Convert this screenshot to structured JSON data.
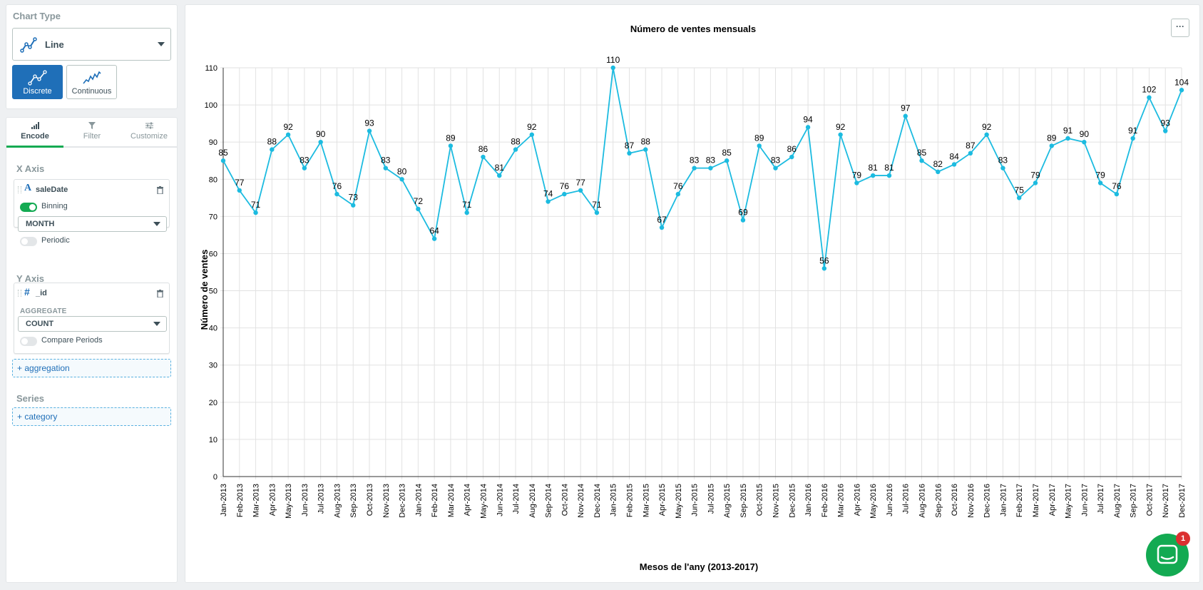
{
  "sidebar": {
    "chart_type": {
      "section_label": "Chart Type",
      "selected": "Line",
      "modes": [
        {
          "label": "Discrete",
          "active": true
        },
        {
          "label": "Continuous",
          "active": false
        }
      ]
    },
    "tabs": [
      {
        "label": "Encode",
        "active": true
      },
      {
        "label": "Filter",
        "active": false
      },
      {
        "label": "Customize",
        "active": false
      }
    ],
    "x_axis": {
      "label": "X Axis",
      "field": "saleDate",
      "binning_label": "Binning",
      "binning_on": true,
      "bin_value": "MONTH",
      "periodic_label": "Periodic",
      "periodic_on": false
    },
    "y_axis": {
      "label": "Y Axis",
      "field": "_id",
      "aggregate_label": "AGGREGATE",
      "aggregate_value": "COUNT",
      "compare_label": "Compare Periods",
      "compare_on": false
    },
    "add_aggregation": "+ aggregation",
    "series": {
      "label": "Series",
      "add_label": "+ category"
    }
  },
  "chart_panel": {
    "more_button": "···"
  },
  "chat": {
    "badge_count": "1"
  },
  "colors": {
    "line": "#1cbbe0",
    "accent_blue": "#1f6fb8",
    "accent_green": "#13aa52"
  },
  "chart_data": {
    "type": "line",
    "title": "Número de ventes mensuals",
    "xlabel": "Mesos de l'any (2013-2017)",
    "ylabel": "Número de ventes",
    "ylim": [
      0,
      110
    ],
    "yticks": [
      0,
      10,
      20,
      30,
      40,
      50,
      60,
      70,
      80,
      90,
      100,
      110
    ],
    "grid": true,
    "data_labels": true,
    "categories": [
      "Jan-2013",
      "Feb-2013",
      "Mar-2013",
      "Apr-2013",
      "May-2013",
      "Jun-2013",
      "Jul-2013",
      "Aug-2013",
      "Sep-2013",
      "Oct-2013",
      "Nov-2013",
      "Dec-2013",
      "Jan-2014",
      "Feb-2014",
      "Mar-2014",
      "Apr-2014",
      "May-2014",
      "Jun-2014",
      "Jul-2014",
      "Aug-2014",
      "Sep-2014",
      "Oct-2014",
      "Nov-2014",
      "Dec-2014",
      "Jan-2015",
      "Feb-2015",
      "Mar-2015",
      "Apr-2015",
      "May-2015",
      "Jun-2015",
      "Jul-2015",
      "Aug-2015",
      "Sep-2015",
      "Oct-2015",
      "Nov-2015",
      "Dec-2015",
      "Jan-2016",
      "Feb-2016",
      "Mar-2016",
      "Apr-2016",
      "May-2016",
      "Jun-2016",
      "Jul-2016",
      "Aug-2016",
      "Sep-2016",
      "Oct-2016",
      "Nov-2016",
      "Dec-2016",
      "Jan-2017",
      "Feb-2017",
      "Mar-2017",
      "Apr-2017",
      "May-2017",
      "Jun-2017",
      "Jul-2017",
      "Aug-2017",
      "Sep-2017",
      "Oct-2017",
      "Nov-2017",
      "Dec-2017"
    ],
    "values": [
      85,
      77,
      71,
      88,
      92,
      83,
      90,
      76,
      73,
      93,
      83,
      80,
      72,
      64,
      89,
      71,
      86,
      81,
      88,
      92,
      74,
      76,
      77,
      71,
      110,
      87,
      88,
      67,
      76,
      83,
      83,
      85,
      69,
      89,
      83,
      86,
      94,
      56,
      92,
      79,
      81,
      81,
      97,
      85,
      82,
      84,
      87,
      92,
      83,
      75,
      79,
      89,
      91,
      90,
      79,
      76,
      91,
      102,
      93,
      104
    ]
  }
}
